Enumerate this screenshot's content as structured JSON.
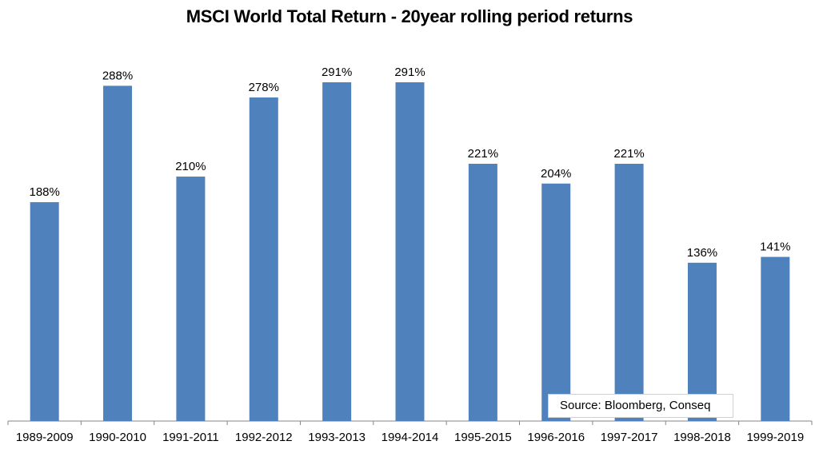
{
  "chart_data": {
    "type": "bar",
    "title": "MSCI World Total Return - 20year rolling period returns",
    "categories": [
      "1989-2009",
      "1990-2010",
      "1991-2011",
      "1992-2012",
      "1993-2013",
      "1994-2014",
      "1995-2015",
      "1996-2016",
      "1997-2017",
      "1998-2018",
      "1999-2019"
    ],
    "values": [
      188,
      288,
      210,
      278,
      291,
      291,
      221,
      204,
      221,
      136,
      141
    ],
    "data_labels": [
      "188%",
      "288%",
      "210%",
      "278%",
      "291%",
      "291%",
      "221%",
      "204%",
      "221%",
      "136%",
      "141%"
    ],
    "ylim": [
      0,
      330
    ],
    "grid": false,
    "bar_color": "#4f81bd",
    "annotation": "Source: Bloomberg, Conseq"
  }
}
